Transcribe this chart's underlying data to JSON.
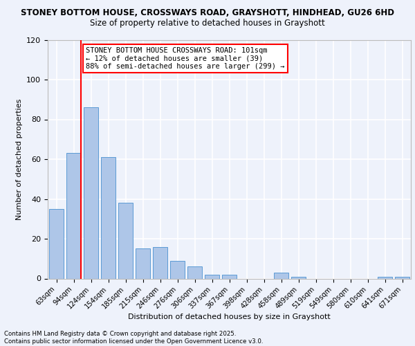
{
  "title_line1": "STONEY BOTTOM HOUSE, CROSSWAYS ROAD, GRAYSHOTT, HINDHEAD, GU26 6HD",
  "title_line2": "Size of property relative to detached houses in Grayshott",
  "xlabel": "Distribution of detached houses by size in Grayshott",
  "ylabel": "Number of detached properties",
  "categories": [
    "63sqm",
    "94sqm",
    "124sqm",
    "154sqm",
    "185sqm",
    "215sqm",
    "246sqm",
    "276sqm",
    "306sqm",
    "337sqm",
    "367sqm",
    "398sqm",
    "428sqm",
    "458sqm",
    "489sqm",
    "519sqm",
    "549sqm",
    "580sqm",
    "610sqm",
    "641sqm",
    "671sqm"
  ],
  "values": [
    35,
    63,
    86,
    61,
    38,
    15,
    16,
    9,
    6,
    2,
    2,
    0,
    0,
    3,
    1,
    0,
    0,
    0,
    0,
    1,
    1
  ],
  "bar_color": "#aec6e8",
  "bar_edge_color": "#5b9bd5",
  "ylim": [
    0,
    120
  ],
  "yticks": [
    0,
    20,
    40,
    60,
    80,
    100,
    120
  ],
  "annotation_title": "STONEY BOTTOM HOUSE CROSSWAYS ROAD: 101sqm",
  "annotation_line1": "← 12% of detached houses are smaller (39)",
  "annotation_line2": "88% of semi-detached houses are larger (299) →",
  "footnote_line1": "Contains HM Land Registry data © Crown copyright and database right 2025.",
  "footnote_line2": "Contains public sector information licensed under the Open Government Licence v3.0.",
  "background_color": "#eef2fb",
  "grid_color": "#ffffff"
}
